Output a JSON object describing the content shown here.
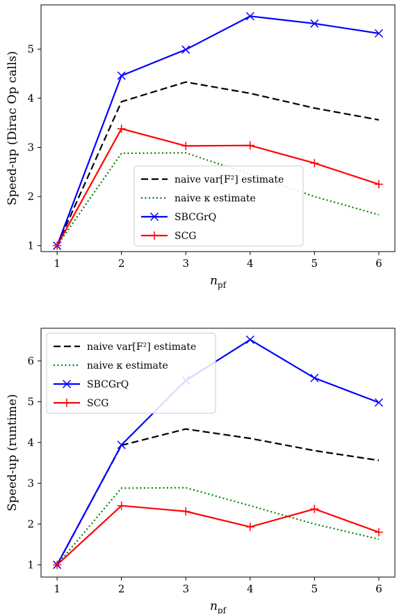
{
  "chart_data": [
    {
      "type": "line",
      "ylabel": "Speed-up (Dirac Op calls)",
      "xlabel_main": "n",
      "xlabel_sub": "pf",
      "x": [
        1,
        2,
        3,
        4,
        5,
        6
      ],
      "xlim": [
        0.75,
        6.25
      ],
      "ylim": [
        0.88,
        5.9
      ],
      "yticks": [
        1,
        2,
        3,
        4,
        5
      ],
      "legend": "lower-right",
      "series": [
        {
          "name": "naive var[F²] estimate",
          "color": "#000000",
          "dash": "dashed",
          "marker": "none",
          "values": [
            1.0,
            3.93,
            4.33,
            4.1,
            3.8,
            3.56
          ]
        },
        {
          "name": "naive κ estimate",
          "color": "#008000",
          "dash": "dotted",
          "marker": "none",
          "values": [
            1.0,
            2.88,
            2.89,
            2.45,
            2.0,
            1.63
          ]
        },
        {
          "name": "SBCGrQ",
          "color": "#0000ff",
          "dash": "solid",
          "marker": "x",
          "values": [
            1.0,
            4.46,
            4.99,
            5.67,
            5.52,
            5.32
          ]
        },
        {
          "name": "SCG",
          "color": "#ff0000",
          "dash": "solid",
          "marker": "+",
          "values": [
            1.0,
            3.38,
            3.03,
            3.04,
            2.68,
            2.25
          ]
        }
      ]
    },
    {
      "type": "line",
      "ylabel": "Speed-up (runtime)",
      "xlabel_main": "n",
      "xlabel_sub": "pf",
      "x": [
        1,
        2,
        3,
        4,
        5,
        6
      ],
      "xlim": [
        0.75,
        6.25
      ],
      "ylim": [
        0.7,
        6.8
      ],
      "yticks": [
        1,
        2,
        3,
        4,
        5,
        6
      ],
      "legend": "upper-left",
      "series": [
        {
          "name": "naive var[F²] estimate",
          "color": "#000000",
          "dash": "dashed",
          "marker": "none",
          "values": [
            1.0,
            3.93,
            4.33,
            4.1,
            3.8,
            3.56
          ]
        },
        {
          "name": "naive κ estimate",
          "color": "#008000",
          "dash": "dotted",
          "marker": "none",
          "values": [
            1.0,
            2.88,
            2.89,
            2.45,
            2.0,
            1.63
          ]
        },
        {
          "name": "SBCGrQ",
          "color": "#0000ff",
          "dash": "solid",
          "marker": "x",
          "values": [
            1.0,
            3.94,
            5.52,
            6.52,
            5.58,
            4.98
          ]
        },
        {
          "name": "SCG",
          "color": "#ff0000",
          "dash": "solid",
          "marker": "+",
          "values": [
            1.0,
            2.45,
            2.31,
            1.93,
            2.37,
            1.8
          ]
        }
      ]
    }
  ]
}
